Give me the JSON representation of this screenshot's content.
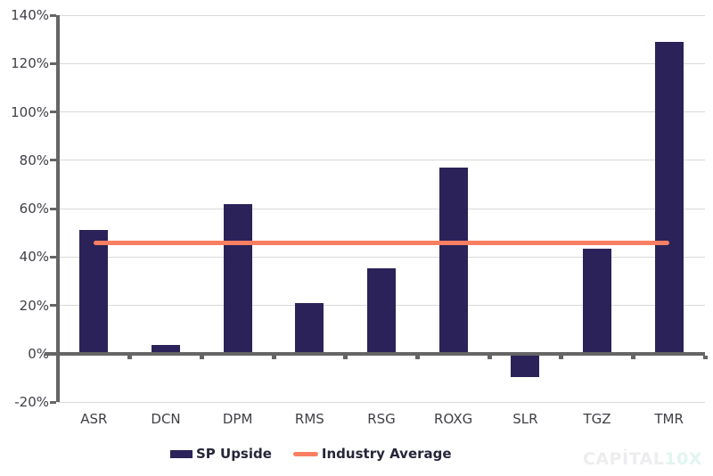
{
  "chart_data": {
    "type": "bar",
    "title": "",
    "categories": [
      "ASR",
      "DCN",
      "DPM",
      "RMS",
      "RSG",
      "ROXG",
      "SLR",
      "TGZ",
      "TMR"
    ],
    "series": [
      {
        "name": "SP Upside",
        "type": "bar",
        "color": "#2b2259",
        "values": [
          51,
          3.5,
          62,
          21,
          35.5,
          77,
          -9.5,
          43.5,
          129
        ]
      },
      {
        "name": "Industry Average",
        "type": "line",
        "color": "#f97f62",
        "values": [
          46,
          46,
          46,
          46,
          46,
          46,
          46,
          46,
          46
        ]
      }
    ],
    "xlabel": "",
    "ylabel": "",
    "ylim": [
      -20,
      140
    ],
    "yticks": [
      {
        "value": -20,
        "label": "-20%"
      },
      {
        "value": 0,
        "label": "0%"
      },
      {
        "value": 20,
        "label": "20%"
      },
      {
        "value": 40,
        "label": "40%"
      },
      {
        "value": 60,
        "label": "60%"
      },
      {
        "value": 80,
        "label": "80%"
      },
      {
        "value": 100,
        "label": "100%"
      },
      {
        "value": 120,
        "label": "120%"
      },
      {
        "value": 140,
        "label": "140%"
      }
    ],
    "grid": true,
    "legend_position": "bottom",
    "industry_average_value": 46
  },
  "watermark": {
    "brand": "CAPİTAL",
    "suffix": "10X"
  },
  "colors": {
    "bar": "#2b2259",
    "line": "#f97f62",
    "axis": "#656565",
    "gridline": "#d9d9d9",
    "axis_label": "#3f3f46",
    "legend_text": "#26263a",
    "watermark_brand": "#ededef",
    "watermark_suffix": "#e2f5f1",
    "background": "#ffffff"
  }
}
